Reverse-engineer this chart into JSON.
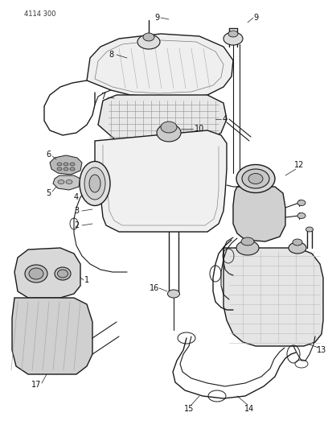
{
  "title": "4114 300",
  "bg_color": "#ffffff",
  "line_color": "#1a1a1a",
  "label_color": "#111111",
  "figsize": [
    4.08,
    5.33
  ],
  "dpi": 100,
  "xlim": [
    0,
    408
  ],
  "ylim": [
    0,
    533
  ]
}
